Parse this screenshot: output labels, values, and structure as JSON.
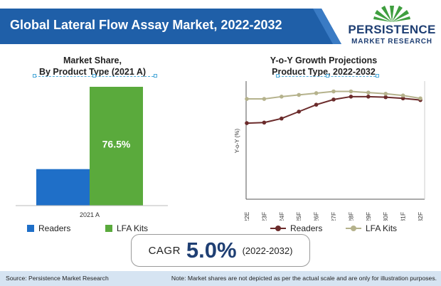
{
  "header": {
    "title": "Global Lateral Flow Assay Market, 2022-2032",
    "banner_color": "#1f5fa8"
  },
  "logo": {
    "word1": "PERSISTENCE",
    "word2": "MARKET RESEARCH",
    "mark_icon": "sunburst-logo-icon",
    "mark_color": "#3f9e3f"
  },
  "chart_data": [
    {
      "type": "bar",
      "title_line1": "Market Share,",
      "title_line2": "By Product Type (2021 A)",
      "categories": [
        "2021 A"
      ],
      "series": [
        {
          "name": "Readers",
          "values": [
            23.5
          ],
          "color": "#1f6fc8"
        },
        {
          "name": "LFA Kits",
          "values": [
            76.5
          ],
          "color": "#5aaa3c"
        }
      ],
      "data_labels": [
        "",
        "76.5%"
      ],
      "legend_position": "bottom-left"
    },
    {
      "type": "line",
      "title_line1": "Y-o-Y Growth Projections",
      "title_line2": "Product Type, 2022-2032",
      "ylabel": "Y-o-Y (%)",
      "categories": [
        "2022E",
        "2023F",
        "2024F",
        "2025F",
        "2026F",
        "2027F",
        "2028F",
        "2029F",
        "2030F",
        "2031F",
        "2032F"
      ],
      "ylim": [
        0,
        10
      ],
      "series": [
        {
          "name": "Readers",
          "values": [
            6.6,
            6.65,
            7.0,
            7.6,
            8.2,
            8.65,
            8.9,
            8.9,
            8.85,
            8.75,
            8.6
          ],
          "color": "#6b2b2b"
        },
        {
          "name": "LFA Kits",
          "values": [
            8.7,
            8.7,
            8.9,
            9.05,
            9.2,
            9.35,
            9.35,
            9.25,
            9.15,
            9.0,
            8.75
          ],
          "color": "#b5b28c"
        }
      ],
      "grid": false,
      "legend_position": "bottom"
    }
  ],
  "cagr": {
    "label": "CAGR",
    "value": "5.0%",
    "period": "(2022-2032)"
  },
  "footer": {
    "source": "Source: Persistence Market Research",
    "note": "Note: Market shares are not depicted as per the actual scale and are only for illustration purposes.",
    "bg_color": "#d6e4f2"
  }
}
